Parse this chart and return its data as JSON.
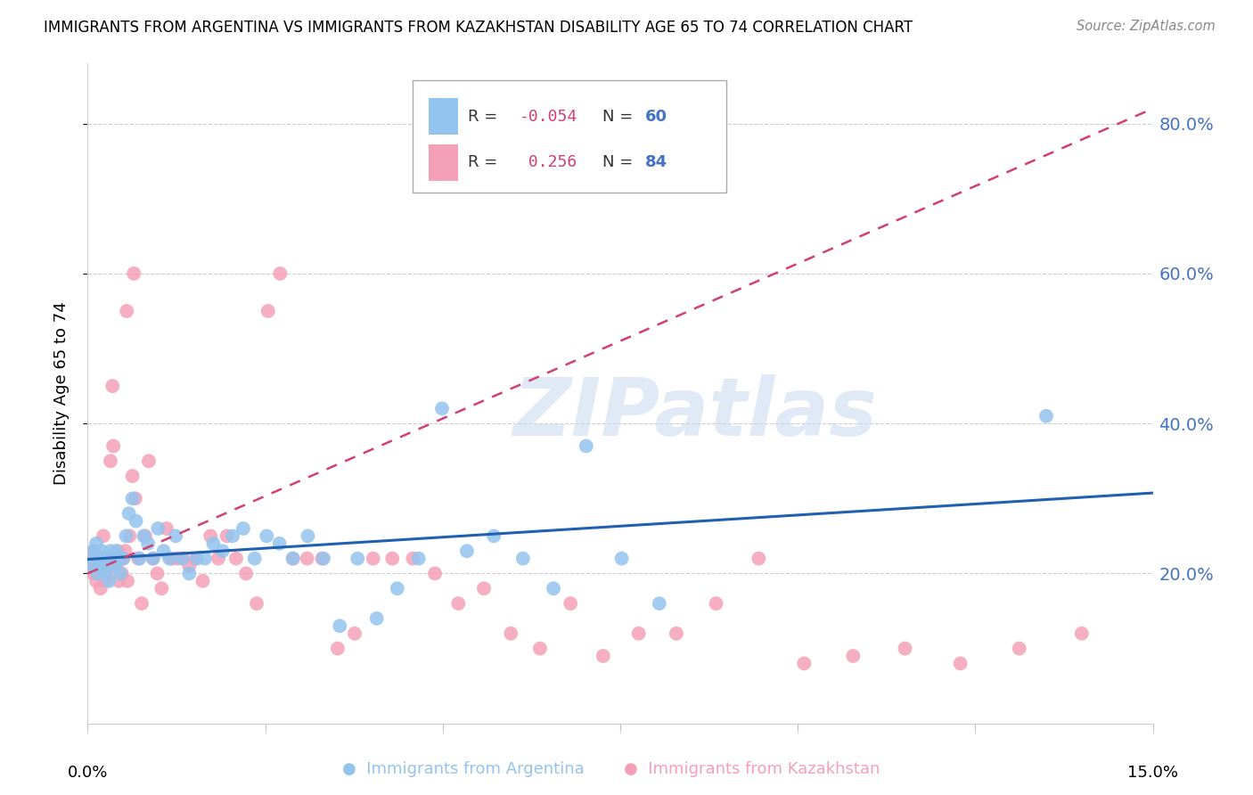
{
  "title": "IMMIGRANTS FROM ARGENTINA VS IMMIGRANTS FROM KAZAKHSTAN DISABILITY AGE 65 TO 74 CORRELATION CHART",
  "source": "Source: ZipAtlas.com",
  "ylabel": "Disability Age 65 to 74",
  "xlim": [
    0.0,
    15.0
  ],
  "ylim": [
    0.0,
    88.0
  ],
  "yticks": [
    20.0,
    40.0,
    60.0,
    80.0
  ],
  "xticks": [
    0.0,
    2.5,
    5.0,
    7.5,
    10.0,
    12.5,
    15.0
  ],
  "argentina_color": "#93C4EE",
  "kazakhstan_color": "#F4A0B8",
  "argentina_R": -0.054,
  "argentina_N": 60,
  "kazakhstan_R": 0.256,
  "kazakhstan_N": 84,
  "regression_blue_color": "#2060B0",
  "regression_pink_color": "#D04070",
  "watermark": "ZIPatlas",
  "argentina_x": [
    0.05,
    0.08,
    0.1,
    0.12,
    0.14,
    0.16,
    0.18,
    0.2,
    0.22,
    0.24,
    0.26,
    0.28,
    0.3,
    0.32,
    0.35,
    0.38,
    0.4,
    0.43,
    0.46,
    0.5,
    0.54,
    0.58,
    0.63,
    0.68,
    0.73,
    0.79,
    0.85,
    0.92,
    0.99,
    1.07,
    1.15,
    1.24,
    1.33,
    1.43,
    1.54,
    1.65,
    1.77,
    1.9,
    2.04,
    2.19,
    2.35,
    2.52,
    2.7,
    2.89,
    3.1,
    3.32,
    3.55,
    3.8,
    4.07,
    4.36,
    4.66,
    4.99,
    5.34,
    5.72,
    6.13,
    6.56,
    7.02,
    7.52,
    8.05,
    13.5
  ],
  "argentina_y": [
    21.0,
    23.0,
    22.0,
    24.0,
    20.0,
    22.0,
    21.0,
    23.0,
    22.0,
    20.0,
    21.0,
    22.0,
    19.0,
    23.0,
    22.0,
    21.0,
    23.0,
    22.0,
    20.0,
    22.0,
    25.0,
    28.0,
    30.0,
    27.0,
    22.0,
    25.0,
    24.0,
    22.0,
    26.0,
    23.0,
    22.0,
    25.0,
    22.0,
    20.0,
    22.0,
    22.0,
    24.0,
    23.0,
    25.0,
    26.0,
    22.0,
    25.0,
    24.0,
    22.0,
    25.0,
    22.0,
    13.0,
    22.0,
    14.0,
    18.0,
    22.0,
    42.0,
    23.0,
    25.0,
    22.0,
    18.0,
    37.0,
    22.0,
    16.0,
    41.0
  ],
  "kazakhstan_x": [
    0.04,
    0.06,
    0.08,
    0.1,
    0.12,
    0.14,
    0.16,
    0.18,
    0.2,
    0.22,
    0.24,
    0.26,
    0.28,
    0.3,
    0.32,
    0.34,
    0.36,
    0.38,
    0.4,
    0.42,
    0.44,
    0.46,
    0.48,
    0.5,
    0.53,
    0.56,
    0.59,
    0.63,
    0.67,
    0.71,
    0.76,
    0.81,
    0.86,
    0.92,
    0.98,
    1.04,
    1.11,
    1.18,
    1.26,
    1.34,
    1.43,
    1.52,
    1.62,
    1.73,
    1.84,
    1.96,
    2.09,
    2.23,
    2.38,
    2.54,
    2.71,
    2.89,
    3.09,
    3.3,
    3.52,
    3.76,
    4.02,
    4.29,
    4.58,
    4.89,
    5.22,
    5.58,
    5.96,
    6.37,
    6.8,
    7.26,
    7.76,
    8.29,
    8.85,
    9.45,
    10.09,
    10.78,
    11.51,
    12.29,
    13.12,
    14.0,
    0.05,
    0.09,
    0.15,
    0.25,
    0.35,
    0.45,
    0.55,
    0.65
  ],
  "kazakhstan_y": [
    22.0,
    21.0,
    20.0,
    22.0,
    19.0,
    21.0,
    20.0,
    18.0,
    22.0,
    25.0,
    19.0,
    21.0,
    20.0,
    22.0,
    35.0,
    22.0,
    37.0,
    22.0,
    21.0,
    23.0,
    19.0,
    22.0,
    20.0,
    22.0,
    23.0,
    19.0,
    25.0,
    33.0,
    30.0,
    22.0,
    16.0,
    25.0,
    35.0,
    22.0,
    20.0,
    18.0,
    26.0,
    22.0,
    22.0,
    22.0,
    21.0,
    22.0,
    19.0,
    25.0,
    22.0,
    25.0,
    22.0,
    20.0,
    16.0,
    55.0,
    60.0,
    22.0,
    22.0,
    22.0,
    10.0,
    12.0,
    22.0,
    22.0,
    22.0,
    20.0,
    16.0,
    18.0,
    12.0,
    10.0,
    16.0,
    9.0,
    12.0,
    12.0,
    16.0,
    22.0,
    8.0,
    9.0,
    10.0,
    8.0,
    10.0,
    12.0,
    22.0,
    23.0,
    21.0,
    22.0,
    45.0,
    22.0,
    55.0,
    60.0
  ]
}
